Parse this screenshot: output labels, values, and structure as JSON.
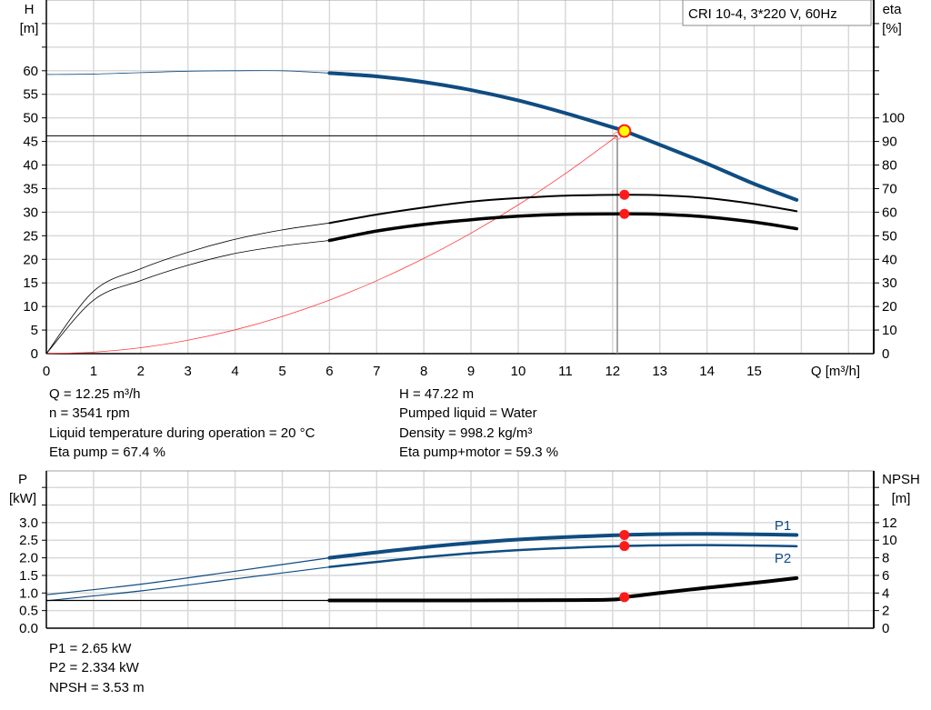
{
  "chart_data": [
    {
      "type": "line",
      "title": "CRI 10-4, 3*220 V, 60Hz",
      "xlabel": "Q [m³/h]",
      "ylabel_left": [
        "H",
        "[m]"
      ],
      "ylabel_right": [
        "eta",
        "[%]"
      ],
      "xlim": [
        0,
        17.5
      ],
      "ylim_left": [
        0,
        75
      ],
      "ylim_right": [
        0,
        150
      ],
      "x_ticks": [
        "0",
        "1",
        "2",
        "3",
        "4",
        "5",
        "6",
        "7",
        "8",
        "9",
        "10",
        "11",
        "12",
        "13",
        "14",
        "15"
      ],
      "y_left_ticks": [
        "0",
        "5",
        "10",
        "15",
        "20",
        "25",
        "30",
        "35",
        "40",
        "45",
        "50",
        "55",
        "60"
      ],
      "y_right_ticks": [
        "0",
        "10",
        "20",
        "30",
        "40",
        "50",
        "60",
        "70",
        "80",
        "90",
        "100"
      ],
      "grid": true,
      "solid_from_q": 6,
      "series": [
        {
          "key": "H",
          "axis": "left",
          "color": "#0f4c81",
          "x": [
            0,
            1,
            2,
            3,
            4,
            5,
            6,
            7,
            8,
            9,
            10,
            11,
            12,
            12.25,
            13,
            14,
            15,
            15.9
          ],
          "y": [
            59.2,
            59.3,
            59.6,
            59.9,
            60,
            60,
            59.5,
            58.8,
            57.6,
            55.9,
            53.7,
            51,
            48,
            47.22,
            44.3,
            40.3,
            36,
            32.6
          ]
        },
        {
          "key": "eta_pump",
          "axis": "right",
          "color": "#000000",
          "x": [
            0,
            1,
            2,
            3,
            4,
            5,
            6,
            7,
            8,
            9,
            10,
            11,
            12.25,
            13,
            14,
            15,
            15.9
          ],
          "y": [
            0,
            26.5,
            36,
            43,
            48.5,
            52.5,
            55.4,
            59,
            62,
            64.5,
            66,
            67,
            67.4,
            67.2,
            66,
            63.5,
            60.4
          ]
        },
        {
          "key": "eta_pump_motor",
          "axis": "right",
          "color": "#000000",
          "x": [
            0,
            1,
            2,
            3,
            4,
            5,
            6,
            7,
            8,
            9,
            10,
            11,
            12.25,
            13,
            14,
            15,
            15.9
          ],
          "y": [
            0,
            22.7,
            31,
            37.5,
            42.5,
            45.7,
            48,
            52,
            54.8,
            56.8,
            58.3,
            59.1,
            59.3,
            59.1,
            58,
            55.8,
            53
          ]
        },
        {
          "key": "system_curve",
          "axis": "left",
          "color": "#ff3b3b",
          "x": [
            0,
            1,
            2,
            3,
            4,
            5,
            6,
            7,
            8,
            9,
            10,
            11,
            12.1
          ],
          "y": [
            0,
            0.32,
            1.26,
            2.84,
            5.05,
            7.89,
            11.36,
            15.46,
            20.19,
            25.56,
            31.55,
            38.18,
            46.2
          ]
        }
      ],
      "duty_point": {
        "q": 12.25,
        "h": 47.22,
        "eta_pump": 67.4,
        "eta_pump_motor": 59.3
      },
      "system_point": {
        "q": 12.1,
        "h": 46.2
      }
    },
    {
      "type": "line",
      "ylabel_left": [
        "P",
        "[kW]"
      ],
      "ylabel_right": [
        "NPSH",
        "[m]"
      ],
      "xlim": [
        0,
        17.5
      ],
      "ylim_left": [
        0,
        4.47
      ],
      "ylim_right": [
        0,
        17.88
      ],
      "y_left_ticks": [
        "0.0",
        "0.5",
        "1.0",
        "1.5",
        "2.0",
        "2.5",
        "3.0"
      ],
      "y_right_ticks": [
        "0",
        "2",
        "4",
        "6",
        "8",
        "10",
        "12"
      ],
      "grid": true,
      "series": [
        {
          "key": "P1",
          "name": "P1",
          "axis": "left",
          "color": "#0f4c81",
          "x": [
            0,
            2,
            4,
            6,
            8,
            10,
            12.25,
            14,
            15.9
          ],
          "y": [
            0.95,
            1.25,
            1.62,
            2.0,
            2.3,
            2.52,
            2.65,
            2.68,
            2.65
          ]
        },
        {
          "key": "P2",
          "name": "P2",
          "axis": "left",
          "color": "#0f4c81",
          "x": [
            0,
            2,
            4,
            6,
            8,
            10,
            12.25,
            14,
            15.9
          ],
          "y": [
            0.78,
            1.06,
            1.4,
            1.74,
            2.02,
            2.22,
            2.334,
            2.36,
            2.33
          ]
        },
        {
          "key": "NPSH",
          "axis": "right",
          "color": "#000000",
          "x": [
            0,
            6,
            11.5,
            12.25,
            13,
            14,
            15,
            15.9
          ],
          "y": [
            3.15,
            3.15,
            3.2,
            3.53,
            4.0,
            4.6,
            5.15,
            5.7
          ]
        }
      ],
      "duty_point": {
        "q": 12.25,
        "p1": 2.65,
        "p2": 2.334,
        "npsh": 3.53
      }
    }
  ],
  "info_top_left": [
    "Q = 12.25 m³/h",
    "n = 3541 rpm",
    "Liquid temperature during operation = 20 °C",
    "Eta pump = 67.4 %"
  ],
  "info_top_right": [
    "H = 47.22 m",
    "Pumped liquid = Water",
    "Density = 998.2 kg/m³",
    "Eta pump+motor = 59.3 %"
  ],
  "info_bottom": [
    "P1 = 2.65 kW",
    "P2 = 2.334 kW",
    "NPSH = 3.53 m"
  ]
}
